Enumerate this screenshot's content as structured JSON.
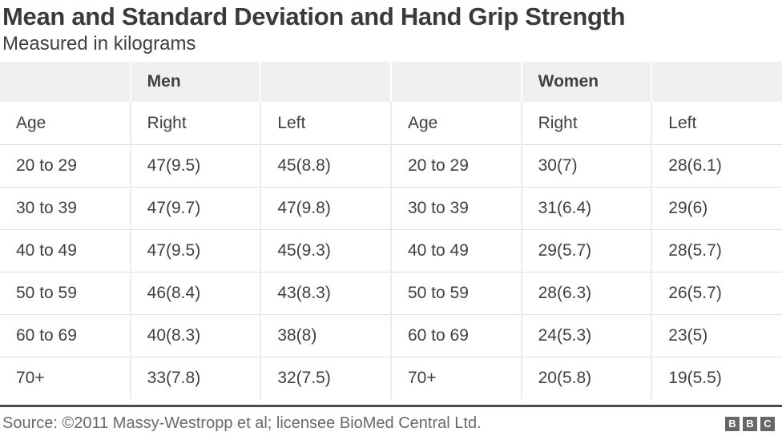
{
  "title": "Mean and Standard Deviation and Hand Grip Strength",
  "subtitle": "Measured in kilograms",
  "chart_data": {
    "type": "table",
    "unit": "kilograms",
    "group_headers": [
      "",
      "Men",
      "",
      "",
      "Women",
      ""
    ],
    "columns": [
      "Age",
      "Right",
      "Left",
      "Age",
      "Right",
      "Left"
    ],
    "rows": [
      [
        "20 to 29",
        "47(9.5)",
        "45(8.8)",
        "20 to 29",
        "30(7)",
        "28(6.1)"
      ],
      [
        "30 to 39",
        "47(9.7)",
        "47(9.8)",
        "30 to 39",
        "31(6.4)",
        "29(6)"
      ],
      [
        "40 to 49",
        "47(9.5)",
        "45(9.3)",
        "40 to 49",
        "29(5.7)",
        "28(5.7)"
      ],
      [
        "50 to 59",
        "46(8.4)",
        "43(8.3)",
        "50 to 59",
        "28(6.3)",
        "26(5.7)"
      ],
      [
        "60 to 69",
        "40(8.3)",
        "38(8)",
        "60 to 69",
        "24(5.3)",
        "23(5)"
      ],
      [
        "70+",
        "33(7.8)",
        "32(7.5)",
        "70+",
        "20(5.8)",
        "19(5.5)"
      ]
    ]
  },
  "footer": {
    "source": "Source: ©2011 Massy-Westropp et al; licensee BioMed Central Ltd.",
    "logo_letters": [
      "B",
      "B",
      "C"
    ]
  },
  "colors": {
    "title_text": "#3a3a3a",
    "body_text": "#404040",
    "header_band": "#f0f0f0",
    "row_divider": "#dedede",
    "column_divider": "#ececec",
    "bottom_rule": "#4d4d4d",
    "source_text": "#696969",
    "logo_block": "#66666b"
  }
}
